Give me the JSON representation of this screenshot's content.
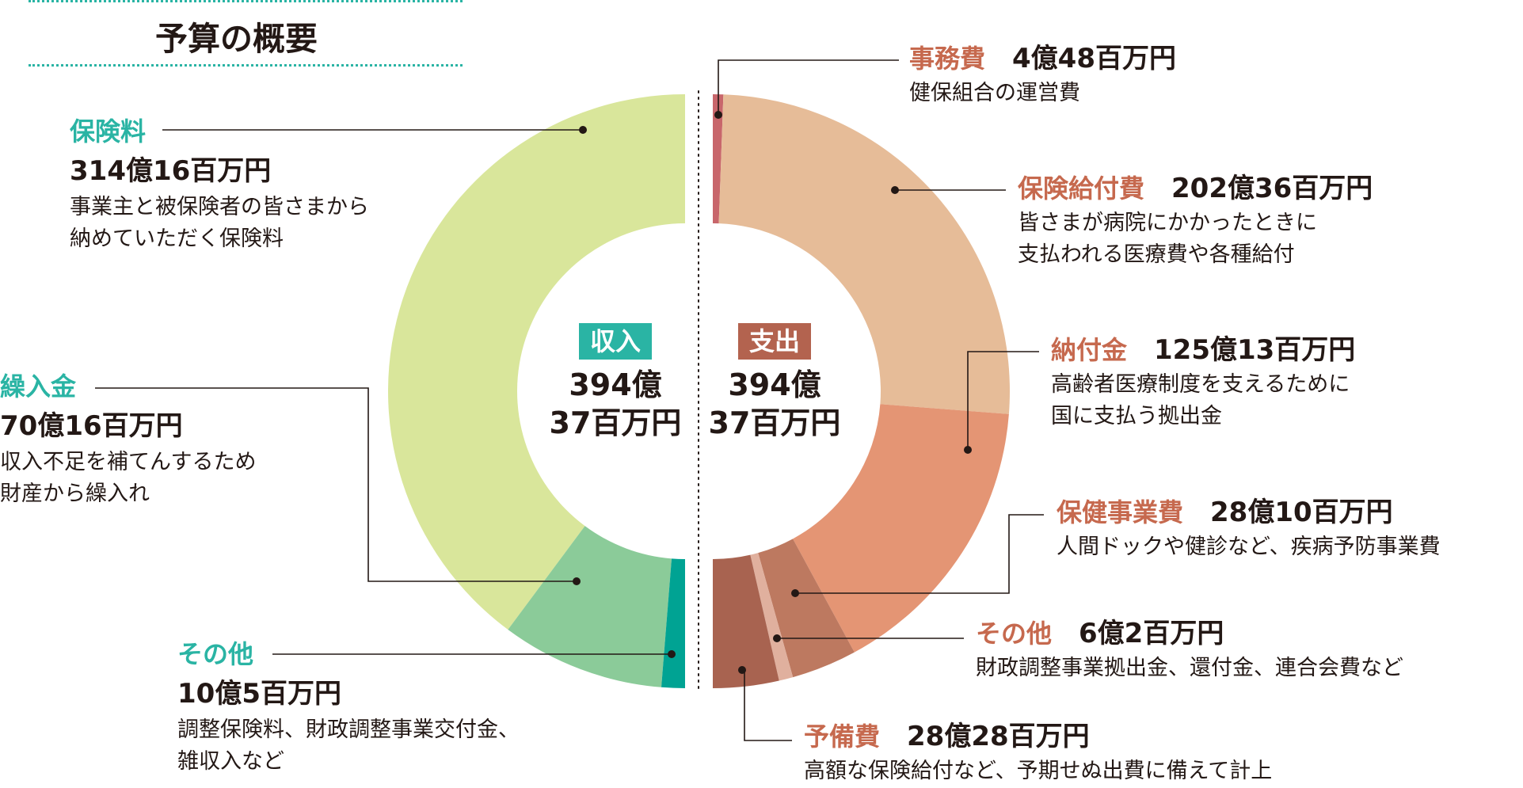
{
  "title": "予算の概要",
  "colors": {
    "accent_income": "#2ab4a4",
    "accent_expense": "#c6694e",
    "badge_income": "#2ab4a4",
    "badge_expense": "#b3634f"
  },
  "chart_data": {
    "type": "pie",
    "style": "split-donut",
    "title": "予算の概要",
    "income": {
      "label": "収入",
      "total_line1": "394億",
      "total_line2": "37百万円",
      "total_oku": 394.37,
      "segments": [
        {
          "name": "保険料",
          "value": 314.16,
          "amount": "314億16百万円",
          "desc_lines": [
            "事業主と被保険者の皆さまから",
            "納めていただく保険料"
          ],
          "color": "#d9e69b"
        },
        {
          "name": "繰入金",
          "value": 70.16,
          "amount": "70億16百万円",
          "desc_lines": [
            "収入不足を補てんするため",
            "財産から繰入れ"
          ],
          "color": "#8bcb99"
        },
        {
          "name": "その他",
          "value": 10.05,
          "amount": "10億5百万円",
          "desc_lines": [
            "調整保険料、財政調整事業交付金、",
            "雑収入など"
          ],
          "color": "#00a393"
        }
      ]
    },
    "expense": {
      "label": "支出",
      "total_line1": "394億",
      "total_line2": "37百万円",
      "total_oku": 394.37,
      "segments": [
        {
          "name": "事務費",
          "value": 4.48,
          "amount": "4億48百万円",
          "desc_lines": [
            "健保組合の運営費"
          ],
          "color": "#c8666b"
        },
        {
          "name": "保険給付費",
          "value": 202.36,
          "amount": "202億36百万円",
          "desc_lines": [
            "皆さまが病院にかかったときに",
            "支払われる医療費や各種給付"
          ],
          "color": "#e6bc98"
        },
        {
          "name": "納付金",
          "value": 125.13,
          "amount": "125億13百万円",
          "desc_lines": [
            "高齢者医療制度を支えるために",
            "国に支払う拠出金"
          ],
          "color": "#e49574"
        },
        {
          "name": "保健事業費",
          "value": 28.1,
          "amount": "28億10百万円",
          "desc_lines": [
            "人間ドックや健診など、疾病予防事業費"
          ],
          "color": "#bd7960"
        },
        {
          "name": "その他",
          "value": 6.02,
          "amount": "6億2百万円",
          "desc_lines": [
            "財政調整事業拠出金、還付金、連合会費など"
          ],
          "color": "#e0b09e"
        },
        {
          "name": "予備費",
          "value": 28.28,
          "amount": "28億28百万円",
          "desc_lines": [
            "高額な保険給付など、予期せぬ出費に備えて計上"
          ],
          "color": "#a86350"
        }
      ]
    }
  }
}
